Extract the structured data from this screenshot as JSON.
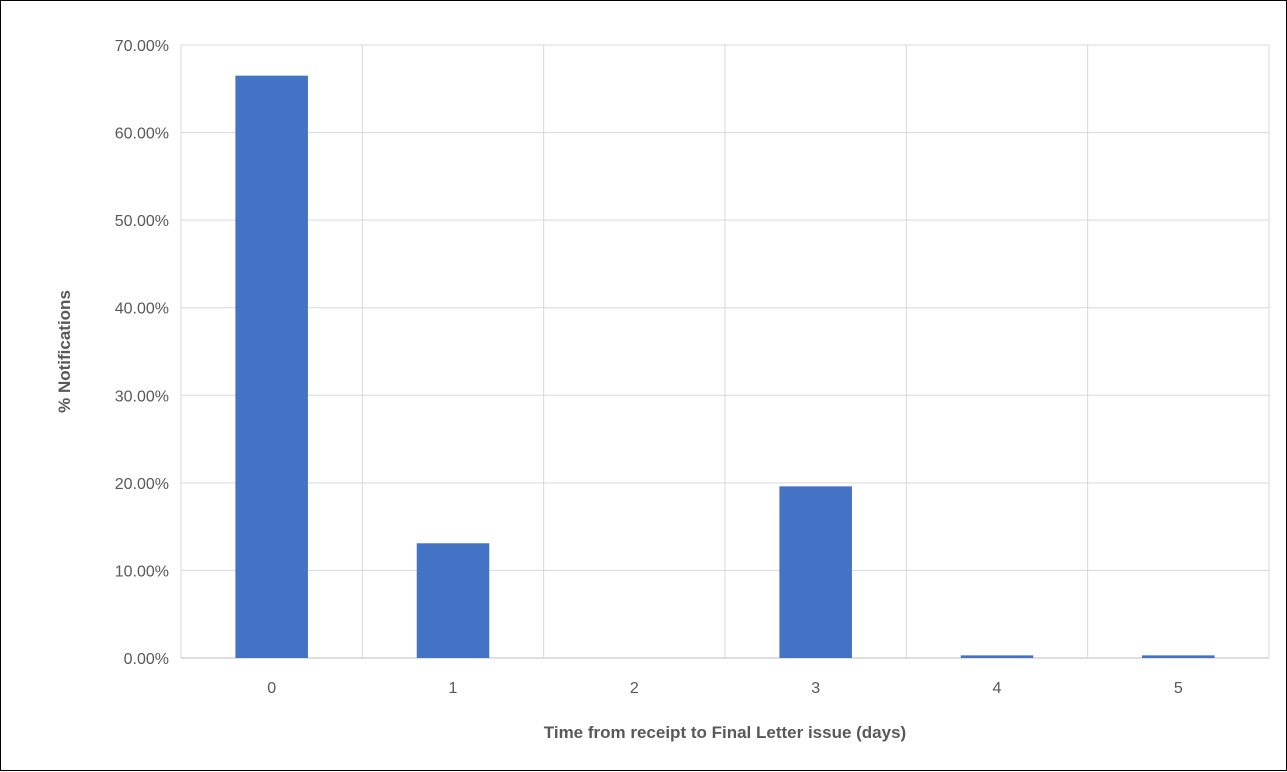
{
  "chart_data": {
    "type": "bar",
    "title": "",
    "xlabel": "Time from receipt to Final Letter issue (days)",
    "ylabel": "% Notifications",
    "categories": [
      "0",
      "1",
      "2",
      "3",
      "4",
      "5"
    ],
    "values": [
      66.5,
      13.1,
      0.0,
      19.6,
      0.3,
      0.3
    ],
    "ylim": [
      0,
      70
    ],
    "yticks": [
      "0.00%",
      "10.00%",
      "20.00%",
      "30.00%",
      "40.00%",
      "50.00%",
      "60.00%",
      "70.00%"
    ],
    "grid": true,
    "legend": "none",
    "bar_color": "#4472C4",
    "grid_color": "#D9D9D9"
  }
}
